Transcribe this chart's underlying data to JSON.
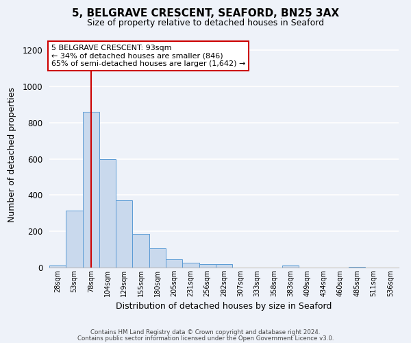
{
  "title": "5, BELGRAVE CRESCENT, SEAFORD, BN25 3AX",
  "subtitle": "Size of property relative to detached houses in Seaford",
  "xlabel": "Distribution of detached houses by size in Seaford",
  "ylabel": "Number of detached properties",
  "bar_values": [
    10,
    315,
    860,
    600,
    370,
    185,
    105,
    45,
    25,
    20,
    18,
    0,
    0,
    0,
    10,
    0,
    0,
    0,
    5,
    0,
    0
  ],
  "x_tick_labels": [
    "28sqm",
    "53sqm",
    "78sqm",
    "104sqm",
    "129sqm",
    "155sqm",
    "180sqm",
    "205sqm",
    "231sqm",
    "256sqm",
    "282sqm",
    "307sqm",
    "333sqm",
    "358sqm",
    "383sqm",
    "409sqm",
    "434sqm",
    "460sqm",
    "485sqm",
    "511sqm",
    "536sqm"
  ],
  "bar_color": "#c9d9ed",
  "bar_edge_color": "#5b9bd5",
  "vline_x": 2.5,
  "vline_color": "#cc0000",
  "ylim": [
    0,
    1250
  ],
  "yticks": [
    0,
    200,
    400,
    600,
    800,
    1000,
    1200
  ],
  "ann_line1": "5 BELGRAVE CRESCENT: 93sqm",
  "ann_line2": "← 34% of detached houses are smaller (846)",
  "ann_line3": "65% of semi-detached houses are larger (1,642) →",
  "annotation_box_color": "#cc0000",
  "footer_line1": "Contains HM Land Registry data © Crown copyright and database right 2024.",
  "footer_line2": "Contains public sector information licensed under the Open Government Licence v3.0.",
  "bg_color": "#eef2f9",
  "grid_color": "#ffffff",
  "figsize": [
    6.0,
    5.0
  ],
  "dpi": 100
}
